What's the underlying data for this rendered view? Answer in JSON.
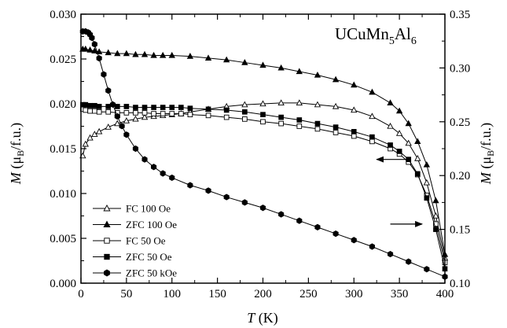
{
  "chart_data": {
    "type": "scatter",
    "title": "UCuMn5Al6",
    "compound": {
      "base": "UCuMn",
      "sub1": "5",
      "mid": "Al",
      "sub2": "6"
    },
    "xlabel": {
      "italic": "T",
      "rest": " (K)"
    },
    "ylabel_left": {
      "italic": "M",
      "rest_pre": " (",
      "mu": "μ",
      "sub": "B",
      "rest_post": "/f.u.)"
    },
    "ylabel_right": {
      "italic": "M",
      "rest_pre": " (",
      "mu": "μ",
      "sub": "B",
      "rest_post": "/f.u.)"
    },
    "xlim": [
      0,
      400
    ],
    "ylim_left": [
      0.0,
      0.03
    ],
    "ylim_right": [
      0.1,
      0.35
    ],
    "xticks": [
      "0",
      "50",
      "100",
      "150",
      "200",
      "250",
      "300",
      "350",
      "400"
    ],
    "yticks_left": [
      "0.000",
      "0.005",
      "0.010",
      "0.015",
      "0.020",
      "0.025",
      "0.030"
    ],
    "yticks_right": [
      "0.10",
      "0.15",
      "0.20",
      "0.25",
      "0.30",
      "0.35"
    ],
    "legend_placement": "bottom-left",
    "arrows": [
      {
        "direction": "left",
        "axis": "left",
        "x_from": 360,
        "x_to": 325,
        "y": 0.0138
      },
      {
        "direction": "right",
        "axis": "right",
        "x_from": 340,
        "x_to": 375,
        "y": 0.1549
      }
    ],
    "series": [
      {
        "name": "FC 100 Oe",
        "marker": "triangle-open",
        "axis": "left",
        "x": [
          2,
          5,
          10,
          15,
          20,
          30,
          40,
          50,
          60,
          70,
          80,
          90,
          100,
          110,
          120,
          140,
          160,
          180,
          200,
          220,
          240,
          260,
          280,
          300,
          320,
          340,
          350,
          360,
          370,
          380,
          390,
          400
        ],
        "y": [
          0.0142,
          0.0155,
          0.0162,
          0.0166,
          0.0169,
          0.0174,
          0.0178,
          0.0181,
          0.0183,
          0.0185,
          0.0186,
          0.0187,
          0.0188,
          0.0189,
          0.0191,
          0.0194,
          0.0197,
          0.0199,
          0.02,
          0.0201,
          0.0201,
          0.0199,
          0.0197,
          0.0193,
          0.0186,
          0.0175,
          0.0167,
          0.0156,
          0.0139,
          0.0112,
          0.0075,
          0.0028
        ]
      },
      {
        "name": "ZFC 100 Oe",
        "marker": "triangle-filled",
        "axis": "left",
        "x": [
          2,
          5,
          10,
          15,
          20,
          30,
          40,
          50,
          60,
          70,
          80,
          90,
          100,
          120,
          140,
          160,
          180,
          200,
          220,
          240,
          260,
          280,
          300,
          320,
          340,
          350,
          360,
          370,
          380,
          390,
          400
        ],
        "y": [
          0.0261,
          0.0261,
          0.026,
          0.0259,
          0.0258,
          0.0257,
          0.0256,
          0.0256,
          0.0255,
          0.0255,
          0.0254,
          0.0254,
          0.0254,
          0.0253,
          0.0251,
          0.0249,
          0.0246,
          0.0243,
          0.024,
          0.0236,
          0.0232,
          0.0227,
          0.0221,
          0.0213,
          0.0201,
          0.0192,
          0.0178,
          0.0158,
          0.0132,
          0.0092,
          0.0032
        ]
      },
      {
        "name": "FC 50 Oe",
        "marker": "square-open",
        "axis": "left",
        "x": [
          2,
          5,
          10,
          15,
          20,
          30,
          40,
          50,
          60,
          70,
          80,
          90,
          100,
          110,
          120,
          140,
          160,
          180,
          200,
          220,
          240,
          260,
          280,
          300,
          320,
          340,
          350,
          360,
          370,
          380,
          390,
          400
        ],
        "y": [
          0.0194,
          0.0193,
          0.0192,
          0.0192,
          0.0191,
          0.0191,
          0.019,
          0.019,
          0.019,
          0.019,
          0.0189,
          0.0189,
          0.0189,
          0.0189,
          0.0188,
          0.0187,
          0.0185,
          0.0183,
          0.018,
          0.0178,
          0.0175,
          0.0172,
          0.0168,
          0.0164,
          0.0158,
          0.015,
          0.0144,
          0.0135,
          0.0121,
          0.0098,
          0.0066,
          0.0023
        ]
      },
      {
        "name": "ZFC 50 Oe",
        "marker": "square-filled",
        "axis": "left",
        "x": [
          2,
          5,
          10,
          15,
          20,
          30,
          40,
          50,
          60,
          70,
          80,
          90,
          100,
          110,
          120,
          140,
          160,
          180,
          200,
          220,
          240,
          260,
          280,
          300,
          320,
          340,
          350,
          360,
          370,
          380,
          390,
          400
        ],
        "y": [
          0.0199,
          0.0199,
          0.0198,
          0.0198,
          0.0197,
          0.0197,
          0.0197,
          0.0197,
          0.0196,
          0.0196,
          0.0196,
          0.0196,
          0.0196,
          0.0196,
          0.0195,
          0.0194,
          0.0193,
          0.0191,
          0.0188,
          0.0185,
          0.0182,
          0.0178,
          0.0174,
          0.0169,
          0.0163,
          0.0154,
          0.0147,
          0.0138,
          0.0122,
          0.0095,
          0.006,
          0.0016
        ]
      },
      {
        "name": "ZFC 50 kOe",
        "marker": "hexagon-filled",
        "axis": "right",
        "x": [
          2,
          5,
          8,
          10,
          12,
          15,
          20,
          25,
          30,
          35,
          40,
          45,
          50,
          60,
          70,
          80,
          90,
          100,
          120,
          140,
          160,
          180,
          200,
          220,
          240,
          260,
          280,
          300,
          320,
          340,
          360,
          380,
          400
        ],
        "y": [
          0.334,
          0.334,
          0.333,
          0.331,
          0.328,
          0.322,
          0.309,
          0.294,
          0.279,
          0.266,
          0.255,
          0.246,
          0.238,
          0.225,
          0.215,
          0.208,
          0.202,
          0.198,
          0.191,
          0.186,
          0.18,
          0.175,
          0.17,
          0.164,
          0.158,
          0.152,
          0.146,
          0.14,
          0.134,
          0.127,
          0.12,
          0.113,
          0.106
        ]
      }
    ]
  }
}
